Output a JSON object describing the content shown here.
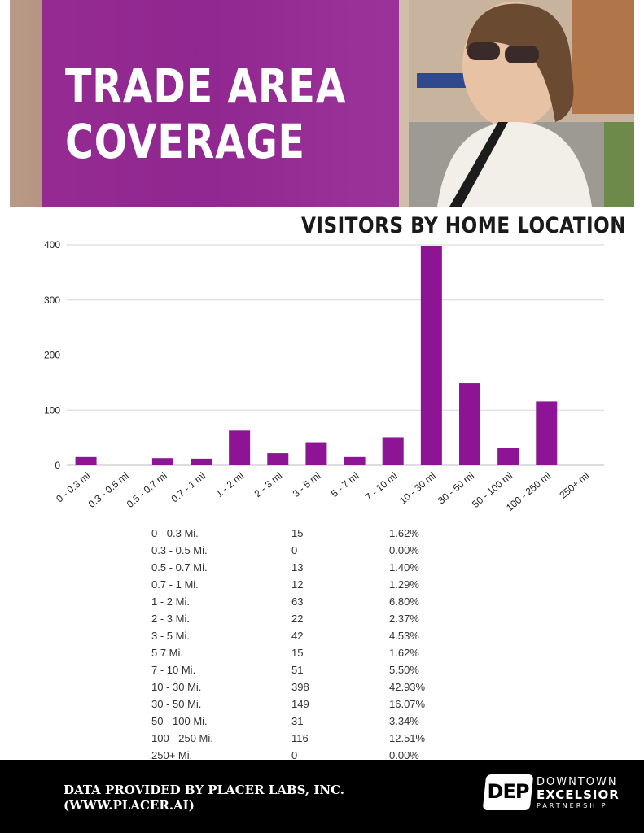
{
  "hero": {
    "title_line1": "TRADE AREA",
    "title_line2": "COVERAGE",
    "overlay_color": "#8e1496"
  },
  "chart_data": {
    "type": "bar",
    "title": "VISITORS BY HOME LOCATION",
    "categories": [
      "0 - 0.3 mi",
      "0.3 - 0.5 mi",
      "0.5 - 0.7 mi",
      "0.7 - 1 mi",
      "1 - 2 mi",
      "2 - 3 mi",
      "3 - 5 mi",
      "5 - 7 mi",
      "7 - 10 mi",
      "10 - 30 mi",
      "30 - 50 mi",
      "50 - 100 mi",
      "100 - 250 mi",
      "250+ mi"
    ],
    "values": [
      15,
      0,
      13,
      12,
      63,
      22,
      42,
      15,
      51,
      398,
      149,
      31,
      116,
      0
    ],
    "ylim": [
      0,
      400
    ],
    "yticks": [
      0,
      100,
      200,
      300,
      400
    ],
    "grid": true,
    "bar_color": "#8e1496",
    "xlabel": "",
    "ylabel": ""
  },
  "table": {
    "rows": [
      {
        "range": "0 - 0.3 Mi.",
        "count": "15",
        "pct": "1.62%"
      },
      {
        "range": "0.3 - 0.5 Mi.",
        "count": "0",
        "pct": "0.00%"
      },
      {
        "range": "0.5 - 0.7 Mi.",
        "count": "13",
        "pct": "1.40%"
      },
      {
        "range": "0.7 - 1 Mi.",
        "count": "12",
        "pct": "1.29%"
      },
      {
        "range": "1 - 2 Mi.",
        "count": "63",
        "pct": "6.80%"
      },
      {
        "range": "2 - 3 Mi.",
        "count": "22",
        "pct": "2.37%"
      },
      {
        "range": "3 - 5 Mi.",
        "count": "42",
        "pct": "4.53%"
      },
      {
        "range": "5 7 Mi.",
        "count": "15",
        "pct": "1.62%"
      },
      {
        "range": "7 - 10 Mi.",
        "count": "51",
        "pct": "5.50%"
      },
      {
        "range": "10 - 30 Mi.",
        "count": "398",
        "pct": "42.93%"
      },
      {
        "range": "30 - 50 Mi.",
        "count": "149",
        "pct": "16.07%"
      },
      {
        "range": "50 - 100 Mi.",
        "count": "31",
        "pct": "3.34%"
      },
      {
        "range": "100 - 250 Mi.",
        "count": "116",
        "pct": "12.51%"
      },
      {
        "range": "250+ Mi.",
        "count": "0",
        "pct": "0.00%"
      }
    ]
  },
  "footer": {
    "credit_line1": "DATA PROVIDED BY PLACER LABS, INC.",
    "credit_line2": "(WWW.PLACER.AI)",
    "logo_mark": "DEP",
    "logo_word1": "DOWNTOWN",
    "logo_word2": "EXCELSIOR",
    "logo_word3": "PARTNERSHIP"
  }
}
